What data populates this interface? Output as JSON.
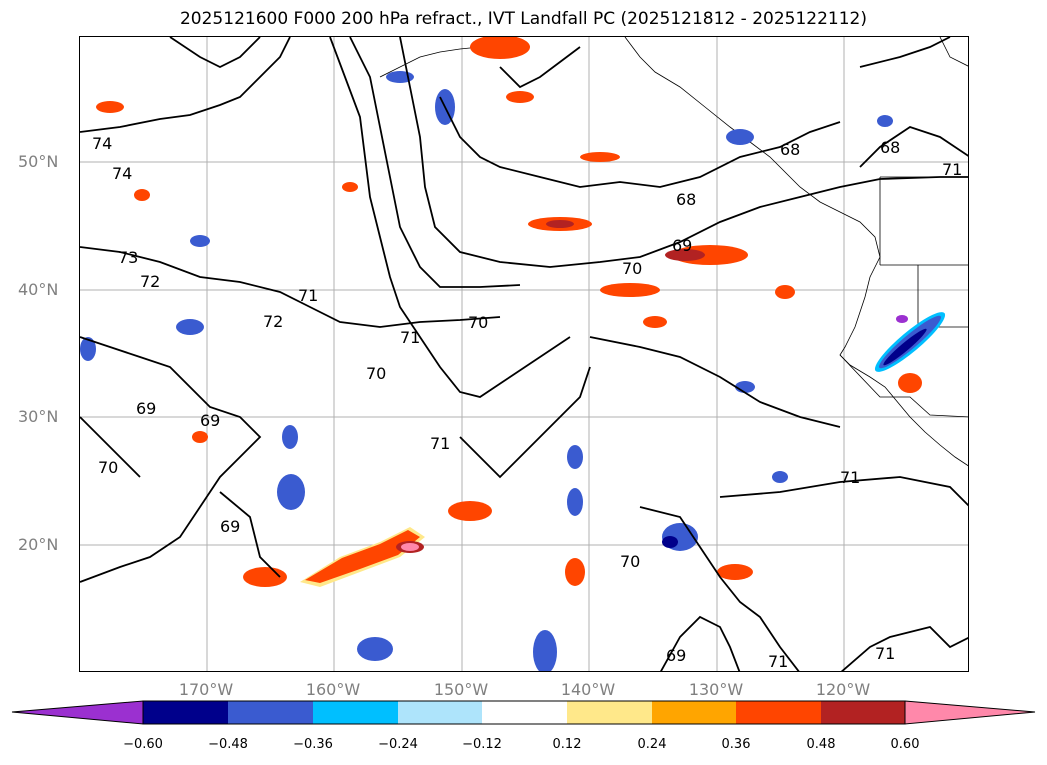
{
  "title": "2025121600 F000 200 hPa refract., IVT Landfall PC (2025121812 - 2025122112)",
  "latitude_labels": [
    "50°N",
    "40°N",
    "30°N",
    "20°N"
  ],
  "longitude_labels": [
    "170°W",
    "160°W",
    "150°W",
    "140°W",
    "130°W",
    "120°W"
  ],
  "contour_labels": [
    "74",
    "74",
    "73",
    "72",
    "71",
    "72",
    "71",
    "70",
    "70",
    "70",
    "69",
    "69",
    "68",
    "68",
    "68",
    "71",
    "69",
    "70",
    "69",
    "70",
    "71",
    "71",
    "71",
    "71",
    "69"
  ],
  "colorbar": {
    "ticks": [
      "−0.60",
      "−0.48",
      "−0.36",
      "−0.24",
      "−0.12",
      "0.12",
      "0.24",
      "0.36",
      "0.48",
      "0.60"
    ],
    "colors": [
      "#9b30d0",
      "#00008b",
      "#3a5bd0",
      "#00bfff",
      "#aee4fb",
      "#ffffff",
      "#ffe88a",
      "#ffa500",
      "#ff4500",
      "#b22222",
      "#ff88aa"
    ]
  }
}
